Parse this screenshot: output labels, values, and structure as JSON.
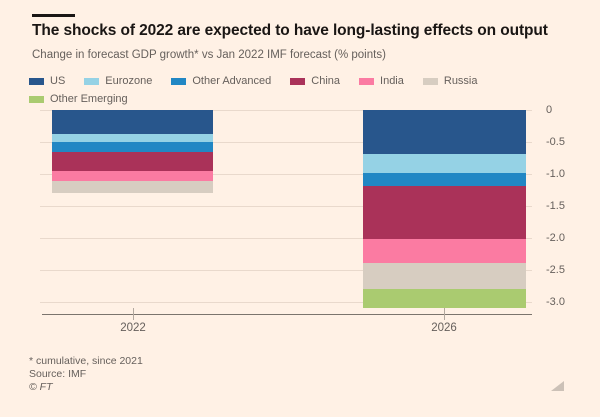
{
  "header": {
    "title": "The shocks of 2022 are expected to have long-lasting effects on output",
    "subtitle": "Change in forecast GDP growth* vs Jan 2022 IMF forecast (% points)"
  },
  "footer": {
    "note": "* cumulative, since 2021",
    "source": "Source: IMF",
    "copyright": "© FT"
  },
  "colors": {
    "background": "#fff1e5",
    "title_text": "#1a1614",
    "muted_text": "#66605c",
    "gridline": "#e9d9cc",
    "axis_line": "#7b746d"
  },
  "chart_data": {
    "type": "bar",
    "stacked": true,
    "title": "The shocks of 2022 are expected to have long-lasting effects on output",
    "subtitle": "Change in forecast GDP growth* vs Jan 2022 IMF forecast (% points)",
    "categories": [
      "2022",
      "2026"
    ],
    "series": [
      {
        "name": "US",
        "color": "#28568c",
        "values": [
          -0.38,
          -0.69
        ]
      },
      {
        "name": "Eurozone",
        "color": "#95d2e5",
        "values": [
          -0.12,
          -0.29
        ]
      },
      {
        "name": "Other Advanced",
        "color": "#2187c4",
        "values": [
          -0.15,
          -0.2
        ]
      },
      {
        "name": "China",
        "color": "#aa3259",
        "values": [
          -0.3,
          -0.83
        ]
      },
      {
        "name": "India",
        "color": "#fb7ba2",
        "values": [
          -0.16,
          -0.38
        ]
      },
      {
        "name": "Russia",
        "color": "#d7cdc1",
        "values": [
          -0.19,
          -0.4
        ]
      },
      {
        "name": "Other Emerging",
        "color": "#aacb70",
        "values": [
          0,
          -0.31
        ]
      }
    ],
    "totals": [
      -1.3,
      -3.1
    ],
    "y_axis": {
      "tick_values": [
        0,
        -0.5,
        -1.0,
        -1.5,
        -2.0,
        -2.5,
        -3.0
      ],
      "tick_labels": [
        "0",
        "-0.5",
        "-1.0",
        "-1.5",
        "-2.0",
        "-2.5",
        "-3.0"
      ],
      "min": -3.2,
      "max": 0
    },
    "grid": true,
    "legend_position": "top"
  }
}
